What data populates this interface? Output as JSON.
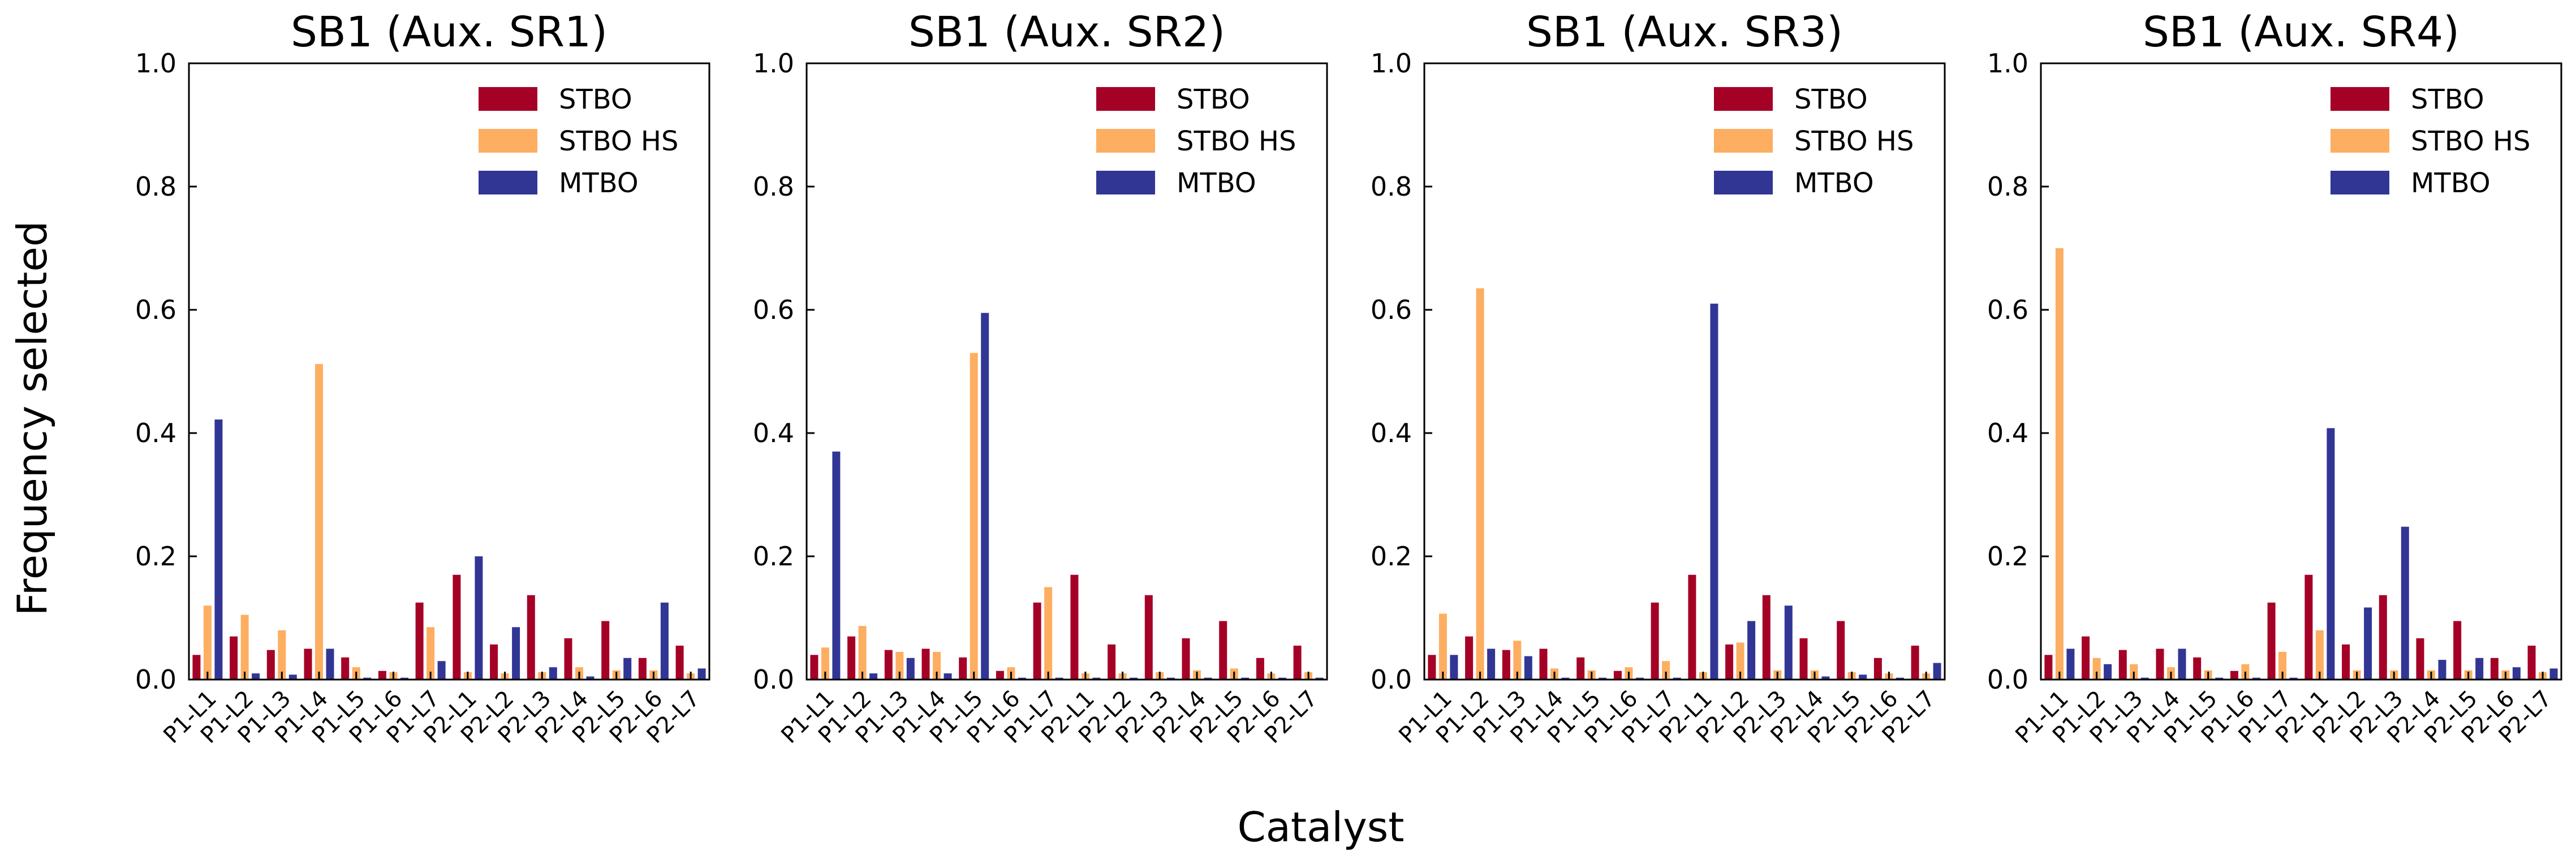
{
  "figure": {
    "ylabel": "Frequency selected",
    "xlabel": "Catalyst"
  },
  "colors": {
    "STBO": "#a50026",
    "STBO HS": "#fdae61",
    "MTBO": "#313695"
  },
  "chart_data": [
    {
      "type": "bar",
      "title": "SB1 (Aux. SR1)",
      "xlabel": "",
      "ylabel": "Frequency selected",
      "ylim": [
        0,
        1.0
      ],
      "yticks": [
        "0.0",
        "0.2",
        "0.4",
        "0.6",
        "0.8",
        "1.0"
      ],
      "legend": "top-right",
      "grid": false,
      "categories": [
        "P1-L1",
        "P1-L2",
        "P1-L3",
        "P1-L4",
        "P1-L5",
        "P1-L6",
        "P1-L7",
        "P2-L1",
        "P2-L2",
        "P2-L3",
        "P2-L4",
        "P2-L5",
        "P2-L6",
        "P2-L7"
      ],
      "series": [
        {
          "name": "STBO",
          "values": [
            0.04,
            0.07,
            0.048,
            0.05,
            0.036,
            0.014,
            0.125,
            0.17,
            0.057,
            0.137,
            0.067,
            0.095,
            0.035,
            0.055
          ]
        },
        {
          "name": "STBO HS",
          "values": [
            0.12,
            0.105,
            0.08,
            0.512,
            0.02,
            0.012,
            0.085,
            0.012,
            0.01,
            0.012,
            0.02,
            0.015,
            0.015,
            0.01
          ]
        },
        {
          "name": "MTBO",
          "values": [
            0.422,
            0.01,
            0.008,
            0.05,
            0.003,
            0.003,
            0.03,
            0.2,
            0.085,
            0.02,
            0.005,
            0.035,
            0.125,
            0.018
          ]
        }
      ]
    },
    {
      "type": "bar",
      "title": "SB1 (Aux. SR2)",
      "xlabel": "",
      "ylabel": "",
      "ylim": [
        0,
        1.0
      ],
      "yticks": [
        "0.0",
        "0.2",
        "0.4",
        "0.6",
        "0.8",
        "1.0"
      ],
      "legend": "top-right",
      "grid": false,
      "categories": [
        "P1-L1",
        "P1-L2",
        "P1-L3",
        "P1-L4",
        "P1-L5",
        "P1-L6",
        "P1-L7",
        "P2-L1",
        "P2-L2",
        "P2-L3",
        "P2-L4",
        "P2-L5",
        "P2-L6",
        "P2-L7"
      ],
      "series": [
        {
          "name": "STBO",
          "values": [
            0.04,
            0.07,
            0.048,
            0.05,
            0.036,
            0.014,
            0.125,
            0.17,
            0.057,
            0.137,
            0.067,
            0.095,
            0.035,
            0.055
          ]
        },
        {
          "name": "STBO HS",
          "values": [
            0.052,
            0.087,
            0.045,
            0.045,
            0.53,
            0.02,
            0.15,
            0.01,
            0.01,
            0.012,
            0.015,
            0.018,
            0.01,
            0.012
          ]
        },
        {
          "name": "MTBO",
          "values": [
            0.37,
            0.01,
            0.035,
            0.01,
            0.595,
            0.003,
            0.003,
            0.003,
            0.003,
            0.003,
            0.003,
            0.003,
            0.003,
            0.003
          ]
        }
      ]
    },
    {
      "type": "bar",
      "title": "SB1 (Aux. SR3)",
      "xlabel": "",
      "ylabel": "",
      "ylim": [
        0,
        1.0
      ],
      "yticks": [
        "0.0",
        "0.2",
        "0.4",
        "0.6",
        "0.8",
        "1.0"
      ],
      "legend": "top-right",
      "grid": false,
      "categories": [
        "P1-L1",
        "P1-L2",
        "P1-L3",
        "P1-L4",
        "P1-L5",
        "P1-L6",
        "P1-L7",
        "P2-L1",
        "P2-L2",
        "P2-L3",
        "P2-L4",
        "P2-L5",
        "P2-L6",
        "P2-L7"
      ],
      "series": [
        {
          "name": "STBO",
          "values": [
            0.04,
            0.07,
            0.048,
            0.05,
            0.036,
            0.014,
            0.125,
            0.17,
            0.057,
            0.137,
            0.067,
            0.095,
            0.035,
            0.055
          ]
        },
        {
          "name": "STBO HS",
          "values": [
            0.107,
            0.635,
            0.063,
            0.018,
            0.015,
            0.02,
            0.03,
            0.012,
            0.06,
            0.015,
            0.015,
            0.012,
            0.01,
            0.01
          ]
        },
        {
          "name": "MTBO",
          "values": [
            0.04,
            0.05,
            0.038,
            0.003,
            0.003,
            0.003,
            0.003,
            0.61,
            0.095,
            0.12,
            0.005,
            0.008,
            0.003,
            0.027
          ]
        }
      ]
    },
    {
      "type": "bar",
      "title": "SB1 (Aux. SR4)",
      "xlabel": "",
      "ylabel": "",
      "ylim": [
        0,
        1.0
      ],
      "yticks": [
        "0.0",
        "0.2",
        "0.4",
        "0.6",
        "0.8",
        "1.0"
      ],
      "legend": "top-right",
      "grid": false,
      "categories": [
        "P1-L1",
        "P1-L2",
        "P1-L3",
        "P1-L4",
        "P1-L5",
        "P1-L6",
        "P1-L7",
        "P2-L1",
        "P2-L2",
        "P2-L3",
        "P2-L4",
        "P2-L5",
        "P2-L6",
        "P2-L7"
      ],
      "series": [
        {
          "name": "STBO",
          "values": [
            0.04,
            0.07,
            0.048,
            0.05,
            0.036,
            0.014,
            0.125,
            0.17,
            0.057,
            0.137,
            0.067,
            0.095,
            0.035,
            0.055
          ]
        },
        {
          "name": "STBO HS",
          "values": [
            0.7,
            0.035,
            0.025,
            0.02,
            0.015,
            0.025,
            0.045,
            0.08,
            0.015,
            0.015,
            0.015,
            0.015,
            0.015,
            0.012
          ]
        },
        {
          "name": "MTBO",
          "values": [
            0.05,
            0.025,
            0.003,
            0.05,
            0.003,
            0.003,
            0.003,
            0.408,
            0.117,
            0.248,
            0.032,
            0.035,
            0.02,
            0.018
          ]
        }
      ]
    }
  ]
}
